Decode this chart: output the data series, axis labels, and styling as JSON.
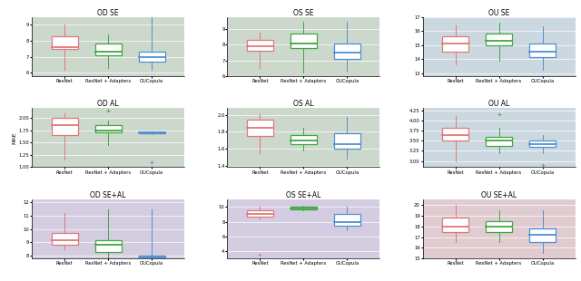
{
  "titles": [
    [
      "OD SE",
      "OS SE",
      "OU SE"
    ],
    [
      "OD AL",
      "OS AL",
      "OU AL"
    ],
    [
      "OD SE+AL",
      "OS SE+AL",
      "OU SE+AL"
    ]
  ],
  "ylabel": "MAE",
  "x_labels": [
    "ResNet",
    "ResNet + Adapters",
    "OUCopula"
  ],
  "bg_colors": [
    [
      "#ccd8cc",
      "#ccd8cc",
      "#ccd8e0"
    ],
    [
      "#ccd8cc",
      "#ccd8cc",
      "#ccd8e0"
    ],
    [
      "#d4cce0",
      "#d4cce0",
      "#e0ccd0"
    ]
  ],
  "box_colors": [
    "#e07878",
    "#40a840",
    "#5090d0"
  ],
  "plots": {
    "OD SE": {
      "ResNet": {
        "whislo": 6.2,
        "q1": 7.5,
        "med": 7.6,
        "q3": 8.3,
        "whishi": 9.0
      },
      "ResNet + Adapters": {
        "whislo": 6.3,
        "q1": 7.1,
        "med": 7.3,
        "q3": 7.8,
        "whishi": 8.4
      },
      "OUCopula": {
        "whislo": 6.2,
        "q1": 6.7,
        "med": 7.0,
        "q3": 7.3,
        "whishi": 9.5
      },
      "ylim": [
        5.8,
        9.5
      ]
    },
    "OS SE": {
      "ResNet": {
        "whislo": 6.5,
        "q1": 7.6,
        "med": 7.9,
        "q3": 8.3,
        "whishi": 8.8
      },
      "ResNet + Adapters": {
        "whislo": 6.2,
        "q1": 7.8,
        "med": 8.1,
        "q3": 8.7,
        "whishi": 9.5
      },
      "OUCopula": {
        "whislo": 6.3,
        "q1": 7.1,
        "med": 7.5,
        "q3": 8.1,
        "whishi": 9.5
      },
      "ylim": [
        6.0,
        9.8
      ]
    },
    "OU SE": {
      "ResNet": {
        "whislo": 13.6,
        "q1": 14.5,
        "med": 15.1,
        "q3": 15.6,
        "whishi": 16.4
      },
      "ResNet + Adapters": {
        "whislo": 13.9,
        "q1": 15.0,
        "med": 15.3,
        "q3": 15.8,
        "whishi": 16.6
      },
      "OUCopula": {
        "whislo": 13.2,
        "q1": 14.1,
        "med": 14.5,
        "q3": 15.1,
        "whishi": 16.3
      },
      "ylim": [
        12.8,
        17.0
      ]
    },
    "OD AL": {
      "ResNet": {
        "whislo": 1.15,
        "q1": 1.65,
        "med": 1.85,
        "q3": 2.0,
        "whishi": 2.1
      },
      "ResNet + Adapters": {
        "whislo": 1.45,
        "q1": 1.7,
        "med": 1.75,
        "q3": 1.85,
        "whishi": 1.95,
        "flier_hi": 2.15
      },
      "OUCopula": {
        "whislo": 1.68,
        "q1": 1.69,
        "med": 1.7,
        "q3": 1.71,
        "whishi": 1.72,
        "flier_lo": 1.1
      },
      "ylim": [
        1.0,
        2.2
      ]
    },
    "OS AL": {
      "ResNet": {
        "whislo": 1.55,
        "q1": 1.75,
        "med": 1.85,
        "q3": 1.94,
        "whishi": 2.02
      },
      "ResNet + Adapters": {
        "whislo": 1.58,
        "q1": 1.65,
        "med": 1.7,
        "q3": 1.76,
        "whishi": 1.85
      },
      "OUCopula": {
        "whislo": 1.48,
        "q1": 1.6,
        "med": 1.65,
        "q3": 1.78,
        "whishi": 1.98
      },
      "ylim": [
        1.38,
        2.08
      ]
    },
    "OU AL": {
      "ResNet": {
        "whislo": 3.0,
        "q1": 3.5,
        "med": 3.65,
        "q3": 3.82,
        "whishi": 4.1
      },
      "ResNet + Adapters": {
        "whislo": 3.2,
        "q1": 3.38,
        "med": 3.5,
        "q3": 3.6,
        "whishi": 3.82,
        "flier_hi": 4.15
      },
      "OUCopula": {
        "whislo": 3.2,
        "q1": 3.35,
        "med": 3.42,
        "q3": 3.5,
        "whishi": 3.65,
        "flier_lo": 2.9
      },
      "ylim": [
        2.85,
        4.3
      ]
    },
    "OD SE+AL": {
      "ResNet": {
        "whislo": 8.5,
        "q1": 8.8,
        "med": 9.2,
        "q3": 9.7,
        "whishi": 11.2
      },
      "ResNet + Adapters": {
        "whislo": 7.5,
        "q1": 8.3,
        "med": 8.8,
        "q3": 9.2,
        "whishi": 11.5
      },
      "OUCopula": {
        "whislo": 7.8,
        "q1": 7.85,
        "med": 7.9,
        "q3": 8.0,
        "whishi": 11.5
      },
      "ylim": [
        7.8,
        12.2
      ]
    },
    "OS SE+AL": {
      "ResNet": {
        "whislo": 8.3,
        "q1": 8.7,
        "med": 9.0,
        "q3": 9.5,
        "whishi": 10.0,
        "flier_lo": 3.5
      },
      "ResNet + Adapters": {
        "whislo": 9.5,
        "q1": 9.7,
        "med": 9.85,
        "q3": 10.0,
        "whishi": 10.1
      },
      "OUCopula": {
        "whislo": 6.8,
        "q1": 7.5,
        "med": 7.9,
        "q3": 9.0,
        "whishi": 10.0
      },
      "ylim": [
        3.0,
        11.0
      ]
    },
    "OU SE+AL": {
      "ResNet": {
        "whislo": 16.5,
        "q1": 17.5,
        "med": 18.0,
        "q3": 18.8,
        "whishi": 20.0
      },
      "ResNet + Adapters": {
        "whislo": 16.5,
        "q1": 17.5,
        "med": 18.0,
        "q3": 18.5,
        "whishi": 19.5
      },
      "OUCopula": {
        "whislo": 15.5,
        "q1": 16.5,
        "med": 17.2,
        "q3": 17.8,
        "whishi": 19.5
      },
      "ylim": [
        15.0,
        20.5
      ]
    }
  },
  "title_fontsize": 5.5,
  "tick_fontsize": 3.8,
  "label_fontsize": 4.5
}
